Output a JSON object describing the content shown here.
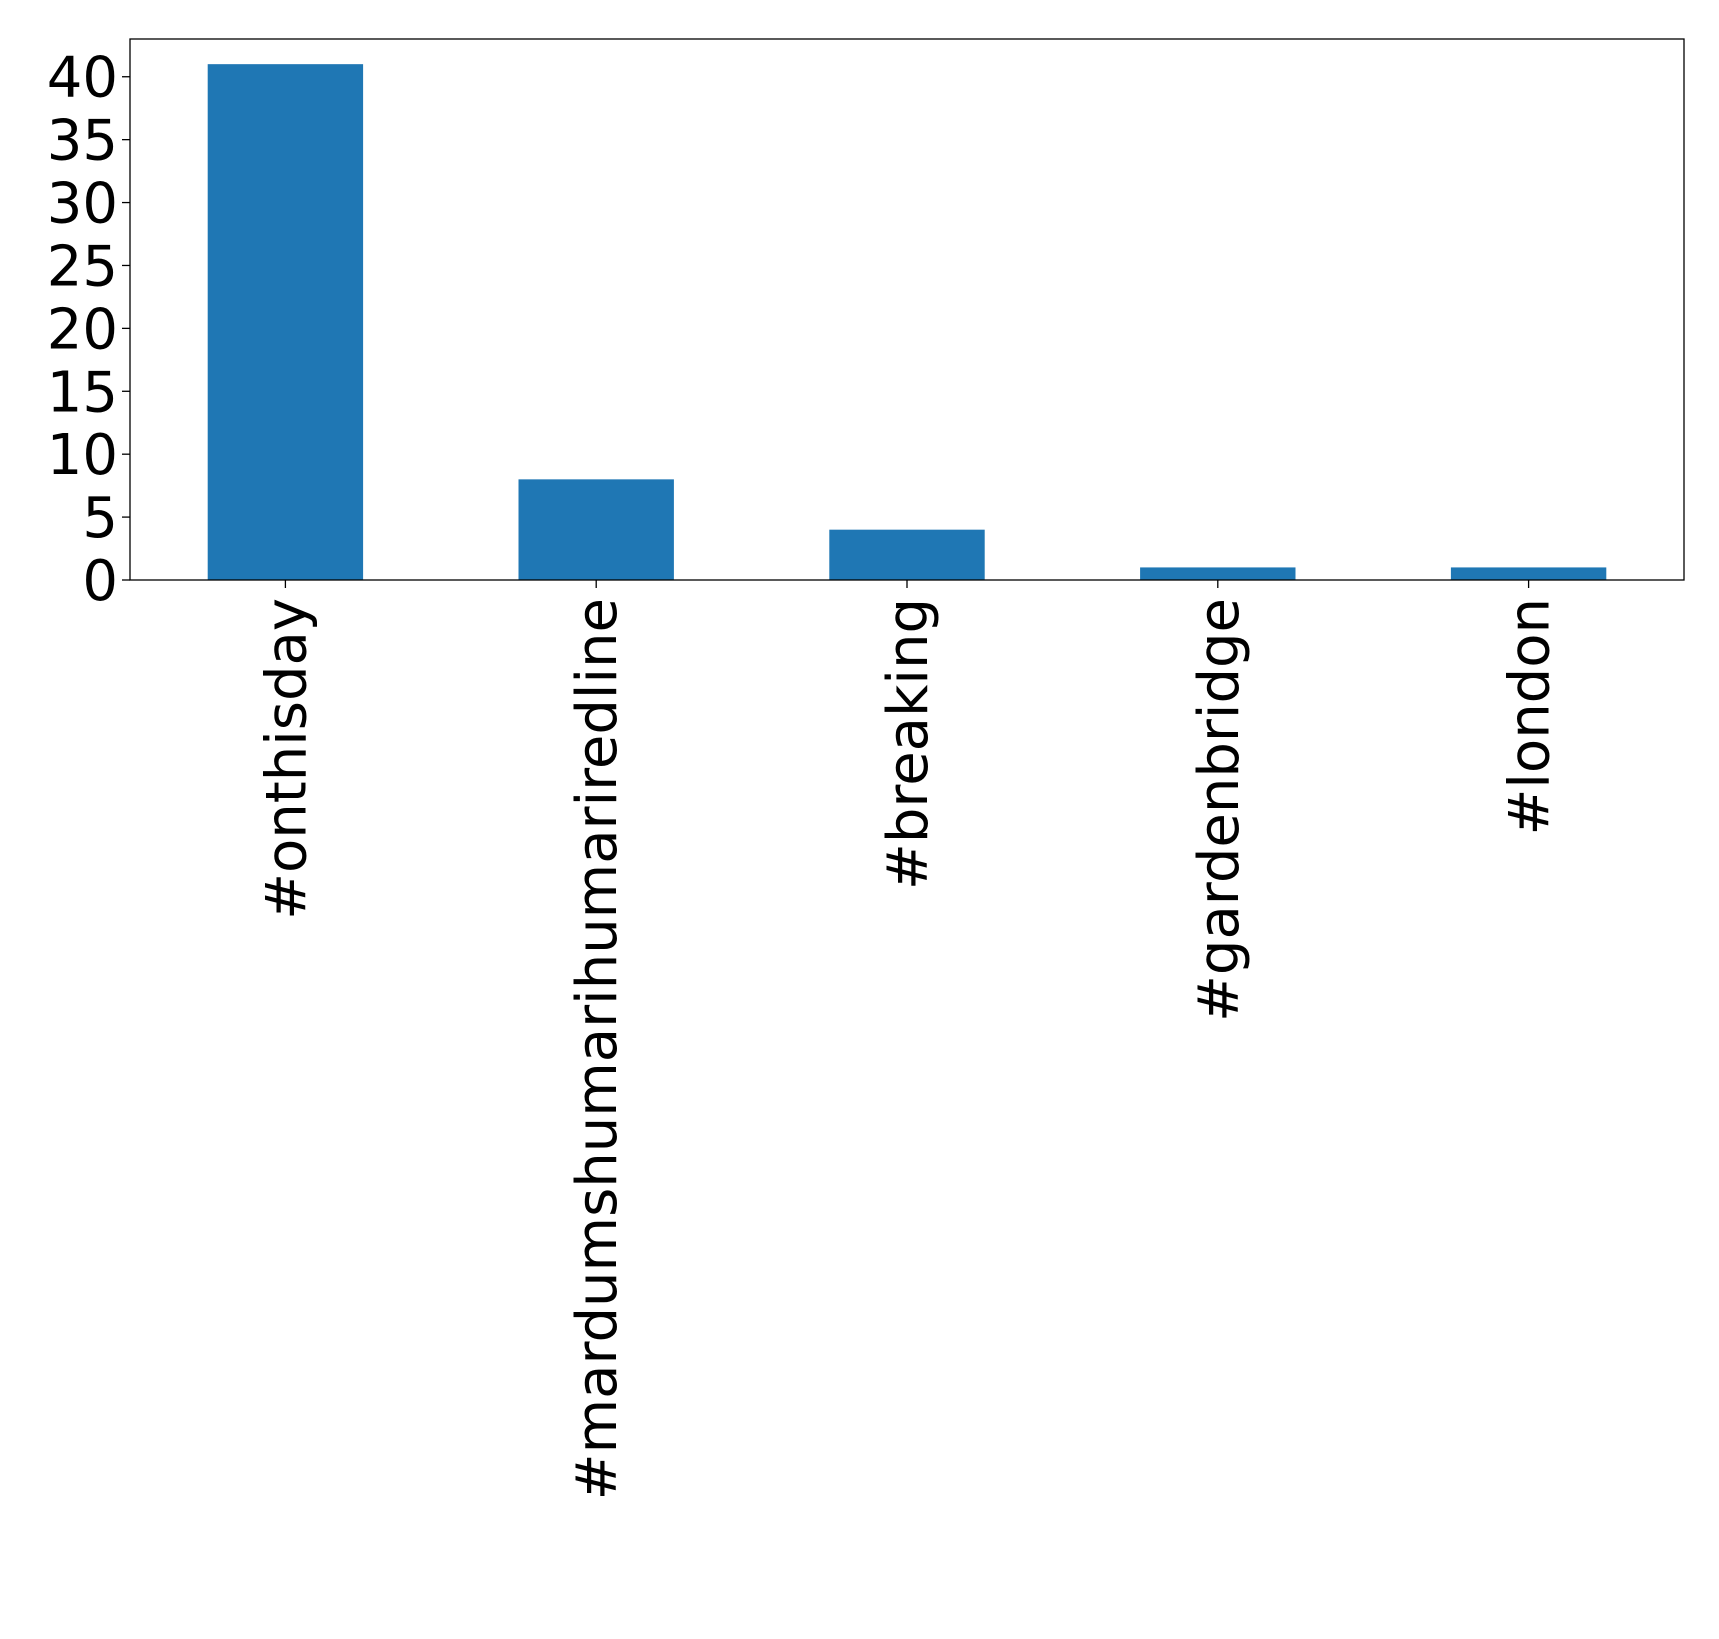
{
  "chart_data": {
    "type": "bar",
    "title": "",
    "xlabel": "",
    "ylabel": "",
    "categories": [
      "#onthisday",
      "#mardumshumarihumariredline",
      "#breaking",
      "#gardenbridge",
      "#london"
    ],
    "values": [
      41,
      8,
      4,
      1,
      1
    ],
    "ylim": [
      0,
      43
    ],
    "yticks": [
      0,
      5,
      10,
      15,
      20,
      25,
      30,
      35,
      40
    ],
    "bar_color": "#1f77b4",
    "grid": false,
    "legend": "none"
  }
}
